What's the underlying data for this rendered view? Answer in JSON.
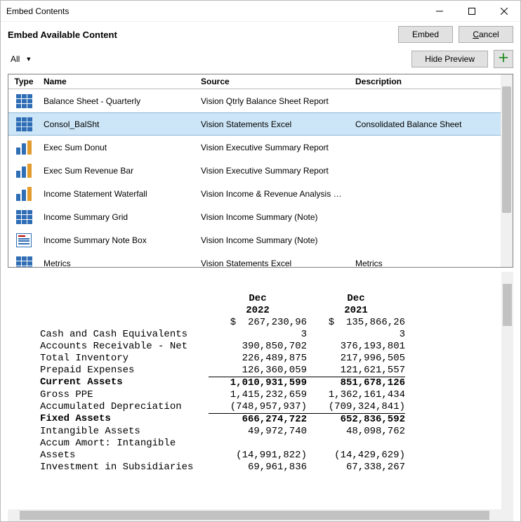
{
  "window": {
    "title": "Embed Contents"
  },
  "toolbar": {
    "heading": "Embed Available Content",
    "embed_label": "Embed",
    "cancel_label": "Cancel",
    "filter_label": "All",
    "hide_preview_label": "Hide Preview"
  },
  "grid": {
    "columns": {
      "type": "Type",
      "name": "Name",
      "source": "Source",
      "description": "Description"
    },
    "rows": [
      {
        "icon": "grid",
        "name": "Balance Sheet - Quarterly",
        "source": "Vision Qtrly Balance Sheet Report",
        "description": "",
        "selected": false
      },
      {
        "icon": "grid",
        "name": "Consol_BalSht",
        "source": "Vision Statements Excel",
        "description": "Consolidated Balance Sheet",
        "selected": true
      },
      {
        "icon": "bar",
        "name": "Exec Sum Donut",
        "source": "Vision Executive Summary Report",
        "description": "",
        "selected": false
      },
      {
        "icon": "bar",
        "name": "Exec Sum Revenue Bar",
        "source": "Vision Executive Summary Report",
        "description": "",
        "selected": false
      },
      {
        "icon": "bar",
        "name": "Income Statement Waterfall",
        "source": "Vision Income & Revenue Analysis Report",
        "description": "",
        "selected": false
      },
      {
        "icon": "grid",
        "name": "Income Summary Grid",
        "source": "Vision Income Summary (Note)",
        "description": "",
        "selected": false
      },
      {
        "icon": "note",
        "name": "Income Summary Note Box",
        "source": "Vision Income Summary (Note)",
        "description": "",
        "selected": false
      },
      {
        "icon": "grid",
        "name": "Metrics",
        "source": "Vision Statements Excel",
        "description": "Metrics",
        "selected": false
      }
    ]
  },
  "preview": {
    "col1_header": "Dec\n2022",
    "col2_header": "Dec\n2021",
    "currency_row": {
      "label": "",
      "v1": "$  267,230,96",
      "v2": "$  135,866,26"
    },
    "rows": [
      {
        "label": "Cash and Cash Equivalents",
        "v1": "3",
        "v2": "3",
        "bold": false,
        "top_border": false
      },
      {
        "label": "Accounts Receivable - Net",
        "v1": "390,850,702",
        "v2": "376,193,801",
        "bold": false,
        "top_border": false
      },
      {
        "label": "Total Inventory",
        "v1": "226,489,875",
        "v2": "217,996,505",
        "bold": false,
        "top_border": false
      },
      {
        "label": "Prepaid Expenses",
        "v1": "126,360,059",
        "v2": "121,621,557",
        "bold": false,
        "top_border": false
      },
      {
        "label": "Current Assets",
        "v1": "1,010,931,599",
        "v2": "851,678,126",
        "bold": true,
        "top_border": true
      },
      {
        "label": "",
        "v1": "",
        "v2": "",
        "bold": false,
        "top_border": false
      },
      {
        "label": "Gross PPE",
        "v1": "1,415,232,659",
        "v2": "1,362,161,434",
        "bold": false,
        "top_border": false
      },
      {
        "label": "Accumulated Depreciation",
        "v1": "(748,957,937)",
        "v2": "(709,324,841)",
        "bold": false,
        "top_border": false
      },
      {
        "label": "Fixed Assets",
        "v1": "666,274,722",
        "v2": "652,836,592",
        "bold": true,
        "top_border": true
      },
      {
        "label": "",
        "v1": "",
        "v2": "",
        "bold": false,
        "top_border": false
      },
      {
        "label": "Intangible Assets",
        "v1": "49,972,740",
        "v2": "48,098,762",
        "bold": false,
        "top_border": false
      },
      {
        "label": "Accum Amort: Intangible",
        "v1": "",
        "v2": "",
        "bold": false,
        "top_border": false
      },
      {
        "label": "Assets",
        "v1": "(14,991,822)",
        "v2": "(14,429,629)",
        "bold": false,
        "top_border": false
      },
      {
        "label": "Investment in Subsidiaries",
        "v1": "69,961,836",
        "v2": "67,338,267",
        "bold": false,
        "top_border": false
      }
    ]
  }
}
